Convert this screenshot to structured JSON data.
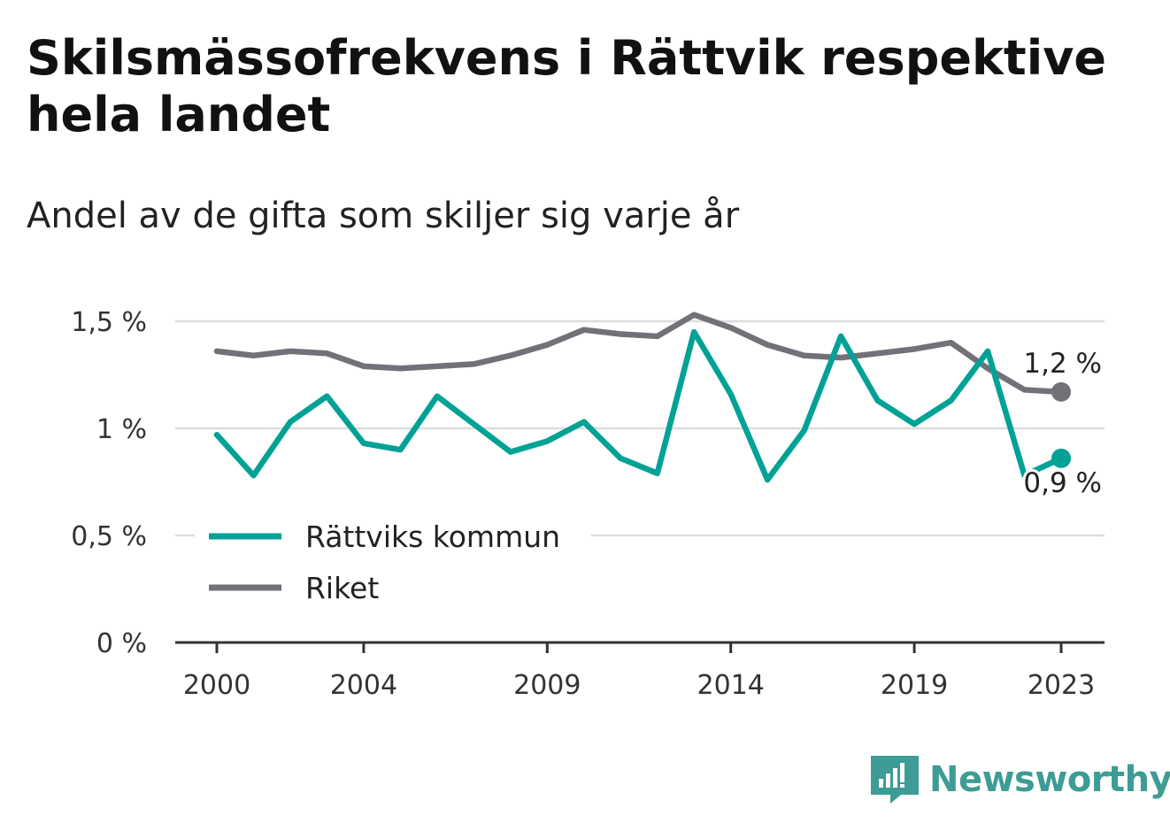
{
  "title": "Skilsmässofrekvens i Rättvik respektive hela landet",
  "subtitle": "Andel av de gifta som skiljer sig varje år",
  "brand": {
    "name": "Newsworthy",
    "icon": "newsworthy-logo-icon",
    "color": "#3d9c95"
  },
  "chart_data": {
    "type": "line",
    "x": [
      2000,
      2001,
      2002,
      2003,
      2004,
      2005,
      2006,
      2007,
      2008,
      2009,
      2010,
      2011,
      2012,
      2013,
      2014,
      2015,
      2016,
      2017,
      2018,
      2019,
      2020,
      2021,
      2022,
      2023
    ],
    "xticks": [
      2000,
      2004,
      2009,
      2014,
      2019,
      2023
    ],
    "xtick_labels": [
      "2000",
      "2004",
      "2009",
      "2014",
      "2019",
      "2023"
    ],
    "ylim": [
      0,
      1.5
    ],
    "yticks": [
      0,
      0.5,
      1,
      1.5
    ],
    "ytick_labels": [
      "0 %",
      "0,5 %",
      "1 %",
      "1,5 %"
    ],
    "grid": true,
    "legend": "bottom-left",
    "series": [
      {
        "name": "Rättviks kommun",
        "color": "#00a296",
        "values": [
          0.97,
          0.78,
          1.03,
          1.15,
          0.93,
          0.9,
          1.15,
          1.02,
          0.89,
          0.94,
          1.03,
          0.86,
          0.79,
          1.45,
          1.16,
          0.76,
          0.99,
          1.43,
          1.13,
          1.02,
          1.13,
          1.36,
          0.78,
          0.86
        ],
        "end_label": "0,9 %"
      },
      {
        "name": "Riket",
        "color": "#727178",
        "values": [
          1.36,
          1.34,
          1.36,
          1.35,
          1.29,
          1.28,
          1.29,
          1.3,
          1.34,
          1.39,
          1.46,
          1.44,
          1.43,
          1.53,
          1.47,
          1.39,
          1.34,
          1.33,
          1.35,
          1.37,
          1.4,
          1.28,
          1.18,
          1.17
        ],
        "end_label": "1,2 %"
      }
    ]
  }
}
